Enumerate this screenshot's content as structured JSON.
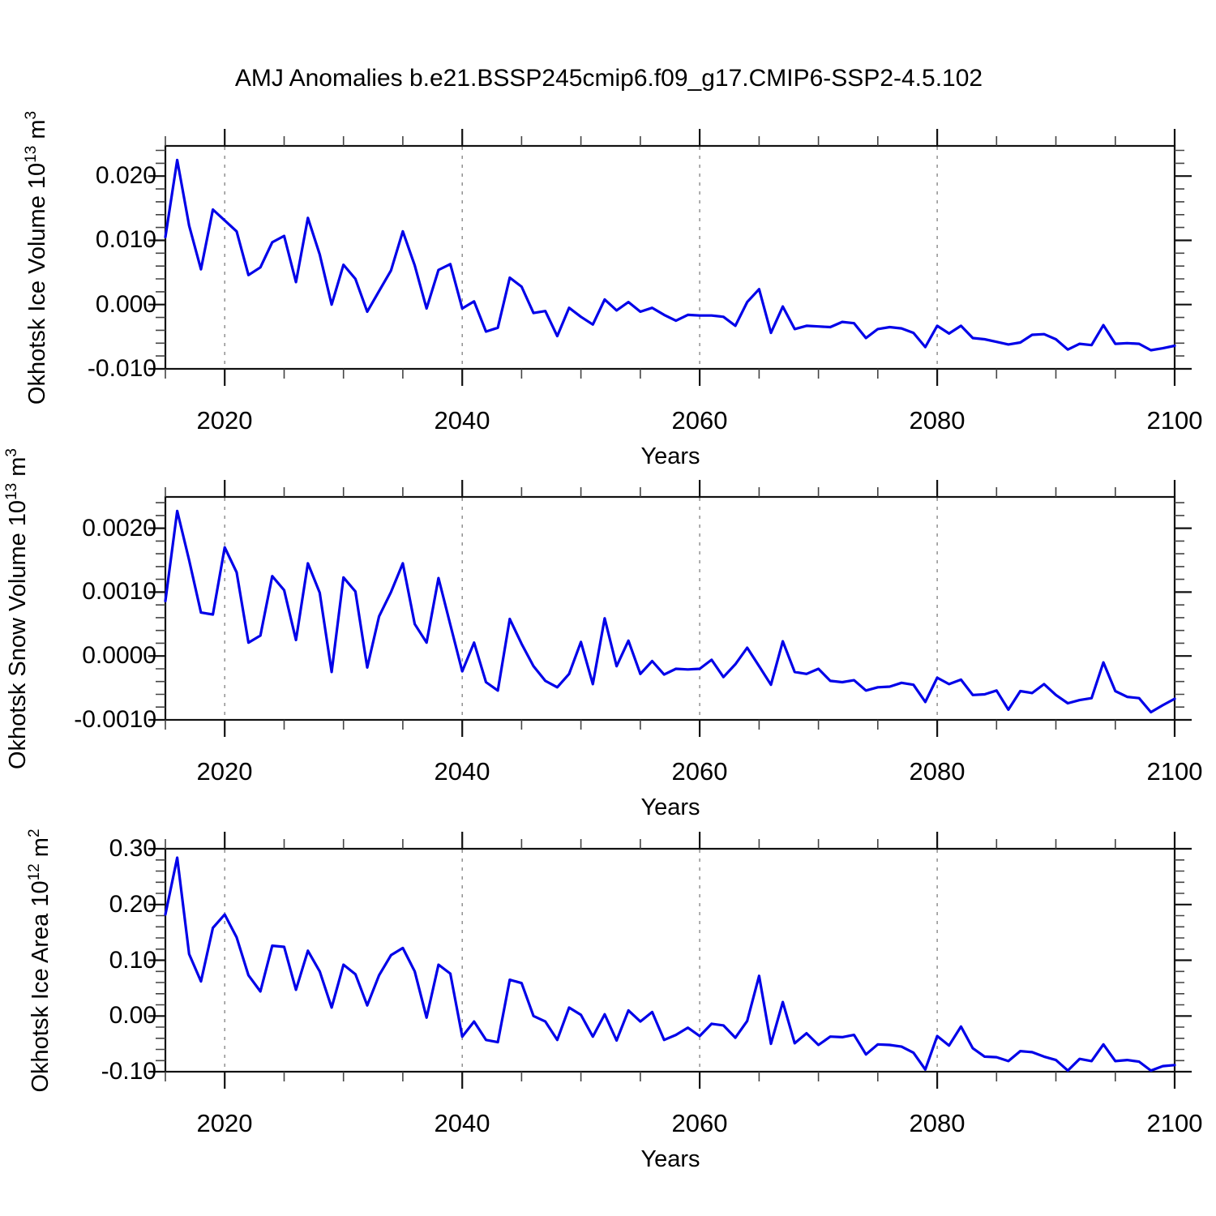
{
  "title": "AMJ Anomalies b.e21.BSSP245cmip6.f09_g17.CMIP6-SSP2-4.5.102",
  "colors": {
    "line": "#0000e8",
    "frame": "#111111",
    "minor_tick": "#444444",
    "grid": "#888888",
    "background": "#ffffff",
    "text": "#000000"
  },
  "chart_data": [
    {
      "type": "line",
      "name": "okhotsk-ice-volume",
      "ylabel": {
        "text": "Okhotsk Ice Volume 10",
        "exp": "13",
        "unit": " m",
        "unit_exp": "3"
      },
      "xlabel": "Years",
      "ylim": [
        -0.01,
        0.0247
      ],
      "yticks": {
        "values": [
          -0.01,
          0.0,
          0.01,
          0.02
        ],
        "labels": [
          "-0.010",
          "0.000",
          "0.010",
          "0.020"
        ]
      },
      "yminor_step": 0.002,
      "xlim": [
        2015,
        2100
      ],
      "xticks": {
        "values": [
          2020,
          2040,
          2060,
          2080,
          2100
        ],
        "labels": [
          "2020",
          "2040",
          "2060",
          "2080",
          "2100"
        ]
      },
      "xminor_step": 5,
      "gridlines_x": [
        2020,
        2040,
        2060,
        2080
      ],
      "grid": "vertical-dashed",
      "legend": "none",
      "years": [
        2015,
        2016,
        2017,
        2018,
        2019,
        2020,
        2021,
        2022,
        2023,
        2024,
        2025,
        2026,
        2027,
        2028,
        2029,
        2030,
        2031,
        2032,
        2033,
        2034,
        2035,
        2036,
        2037,
        2038,
        2039,
        2040,
        2041,
        2042,
        2043,
        2044,
        2045,
        2046,
        2047,
        2048,
        2049,
        2050,
        2051,
        2052,
        2053,
        2054,
        2055,
        2056,
        2057,
        2058,
        2059,
        2060,
        2061,
        2062,
        2063,
        2064,
        2065,
        2066,
        2067,
        2068,
        2069,
        2070,
        2071,
        2072,
        2073,
        2074,
        2075,
        2076,
        2077,
        2078,
        2079,
        2080,
        2081,
        2082,
        2083,
        2084,
        2085,
        2086,
        2087,
        2088,
        2089,
        2090,
        2091,
        2092,
        2093,
        2094,
        2095,
        2096,
        2097,
        2098,
        2099,
        2100
      ],
      "values": [
        0.0105,
        0.0225,
        0.0123,
        0.0055,
        0.0148,
        0.0131,
        0.0114,
        0.0046,
        0.0058,
        0.0097,
        0.0107,
        0.0035,
        0.0135,
        0.0078,
        0.0,
        0.0062,
        0.004,
        -0.0011,
        0.0021,
        0.0053,
        0.0114,
        0.0061,
        -0.0006,
        0.0054,
        0.0063,
        -0.0006,
        0.0005,
        -0.0042,
        -0.0036,
        0.0042,
        0.0028,
        -0.0013,
        -0.001,
        -0.0049,
        -0.0005,
        -0.0019,
        -0.0031,
        0.0008,
        -0.0009,
        0.0004,
        -0.0011,
        -0.0005,
        -0.0016,
        -0.0025,
        -0.0016,
        -0.0017,
        -0.0017,
        -0.0019,
        -0.0033,
        0.0004,
        0.0024,
        -0.0044,
        -0.0003,
        -0.0038,
        -0.0033,
        -0.0034,
        -0.0035,
        -0.0027,
        -0.0029,
        -0.0052,
        -0.0038,
        -0.0035,
        -0.0037,
        -0.0044,
        -0.0066,
        -0.0033,
        -0.0045,
        -0.0033,
        -0.0052,
        -0.0054,
        -0.0058,
        -0.0062,
        -0.0059,
        -0.0047,
        -0.0046,
        -0.0054,
        -0.007,
        -0.0061,
        -0.0063,
        -0.0032,
        -0.0061,
        -0.006,
        -0.0061,
        -0.0071,
        -0.0068,
        -0.0064
      ]
    },
    {
      "type": "line",
      "name": "okhotsk-snow-volume",
      "ylabel": {
        "text": "Okhotsk Snow Volume 10",
        "exp": "13",
        "unit": " m",
        "unit_exp": "3"
      },
      "xlabel": "Years",
      "ylim": [
        -0.001,
        0.00249
      ],
      "yticks": {
        "values": [
          -0.001,
          0.0,
          0.001,
          0.002
        ],
        "labels": [
          "-0.0010",
          "0.0000",
          "0.0010",
          "0.0020"
        ]
      },
      "yminor_step": 0.0002,
      "xlim": [
        2015,
        2100
      ],
      "xticks": {
        "values": [
          2020,
          2040,
          2060,
          2080,
          2100
        ],
        "labels": [
          "2020",
          "2040",
          "2060",
          "2080",
          "2100"
        ]
      },
      "xminor_step": 5,
      "gridlines_x": [
        2020,
        2040,
        2060,
        2080
      ],
      "grid": "vertical-dashed",
      "legend": "none",
      "years": [
        2015,
        2016,
        2017,
        2018,
        2019,
        2020,
        2021,
        2022,
        2023,
        2024,
        2025,
        2026,
        2027,
        2028,
        2029,
        2030,
        2031,
        2032,
        2033,
        2034,
        2035,
        2036,
        2037,
        2038,
        2039,
        2040,
        2041,
        2042,
        2043,
        2044,
        2045,
        2046,
        2047,
        2048,
        2049,
        2050,
        2051,
        2052,
        2053,
        2054,
        2055,
        2056,
        2057,
        2058,
        2059,
        2060,
        2061,
        2062,
        2063,
        2064,
        2065,
        2066,
        2067,
        2068,
        2069,
        2070,
        2071,
        2072,
        2073,
        2074,
        2075,
        2076,
        2077,
        2078,
        2079,
        2080,
        2081,
        2082,
        2083,
        2084,
        2085,
        2086,
        2087,
        2088,
        2089,
        2090,
        2091,
        2092,
        2093,
        2094,
        2095,
        2096,
        2097,
        2098,
        2099,
        2100
      ],
      "values": [
        0.00086,
        0.00227,
        0.0015,
        0.00068,
        0.00065,
        0.0017,
        0.00131,
        0.00021,
        0.00032,
        0.00125,
        0.00103,
        0.00025,
        0.00145,
        0.00099,
        -0.00025,
        0.00123,
        0.00101,
        -0.00018,
        0.00062,
        0.001,
        0.00145,
        0.0005,
        0.00021,
        0.00122,
        0.00049,
        -0.00024,
        0.00021,
        -0.00041,
        -0.00054,
        0.00058,
        0.00019,
        -0.00016,
        -0.00039,
        -0.00049,
        -0.00028,
        0.00022,
        -0.00044,
        0.00059,
        -0.00016,
        0.00024,
        -0.00028,
        -8e-05,
        -0.00029,
        -0.0002,
        -0.00021,
        -0.0002,
        -6e-05,
        -0.00033,
        -0.00013,
        0.00013,
        -0.00016,
        -0.00045,
        0.00023,
        -0.00025,
        -0.00028,
        -0.0002,
        -0.00039,
        -0.00041,
        -0.00038,
        -0.00054,
        -0.00049,
        -0.00048,
        -0.00042,
        -0.00045,
        -0.00072,
        -0.00034,
        -0.00044,
        -0.00037,
        -0.00061,
        -0.0006,
        -0.00054,
        -0.00084,
        -0.00055,
        -0.00058,
        -0.00044,
        -0.00061,
        -0.00074,
        -0.00069,
        -0.00066,
        -0.0001,
        -0.00055,
        -0.00064,
        -0.00066,
        -0.00088,
        -0.00077,
        -0.00067
      ]
    },
    {
      "type": "line",
      "name": "okhotsk-ice-area",
      "ylabel": {
        "text": "Okhotsk Ice Area 10",
        "exp": "12",
        "unit": " m",
        "unit_exp": "2"
      },
      "xlabel": "Years",
      "ylim": [
        -0.1,
        0.3
      ],
      "yticks": {
        "values": [
          -0.1,
          0.0,
          0.1,
          0.2,
          0.3
        ],
        "labels": [
          "-0.10",
          "0.00",
          "0.10",
          "0.20",
          "0.30"
        ]
      },
      "yminor_step": 0.02,
      "xlim": [
        2015,
        2100
      ],
      "xticks": {
        "values": [
          2020,
          2040,
          2060,
          2080,
          2100
        ],
        "labels": [
          "2020",
          "2040",
          "2060",
          "2080",
          "2100"
        ]
      },
      "xminor_step": 5,
      "gridlines_x": [
        2020,
        2040,
        2060,
        2080
      ],
      "grid": "vertical-dashed",
      "legend": "none",
      "years": [
        2015,
        2016,
        2017,
        2018,
        2019,
        2020,
        2021,
        2022,
        2023,
        2024,
        2025,
        2026,
        2027,
        2028,
        2029,
        2030,
        2031,
        2032,
        2033,
        2034,
        2035,
        2036,
        2037,
        2038,
        2039,
        2040,
        2041,
        2042,
        2043,
        2044,
        2045,
        2046,
        2047,
        2048,
        2049,
        2050,
        2051,
        2052,
        2053,
        2054,
        2055,
        2056,
        2057,
        2058,
        2059,
        2060,
        2061,
        2062,
        2063,
        2064,
        2065,
        2066,
        2067,
        2068,
        2069,
        2070,
        2071,
        2072,
        2073,
        2074,
        2075,
        2076,
        2077,
        2078,
        2079,
        2080,
        2081,
        2082,
        2083,
        2084,
        2085,
        2086,
        2087,
        2088,
        2089,
        2090,
        2091,
        2092,
        2093,
        2094,
        2095,
        2096,
        2097,
        2098,
        2099,
        2100
      ],
      "values": [
        0.182,
        0.284,
        0.111,
        0.062,
        0.158,
        0.182,
        0.141,
        0.073,
        0.044,
        0.126,
        0.124,
        0.047,
        0.117,
        0.08,
        0.015,
        0.092,
        0.075,
        0.019,
        0.073,
        0.109,
        0.122,
        0.08,
        -0.003,
        0.092,
        0.076,
        -0.037,
        -0.01,
        -0.043,
        -0.047,
        0.065,
        0.059,
        0.0,
        -0.01,
        -0.043,
        0.015,
        0.002,
        -0.037,
        0.003,
        -0.044,
        0.01,
        -0.01,
        0.007,
        -0.043,
        -0.034,
        -0.021,
        -0.036,
        -0.014,
        -0.017,
        -0.039,
        -0.009,
        0.072,
        -0.05,
        0.025,
        -0.049,
        -0.031,
        -0.052,
        -0.037,
        -0.038,
        -0.034,
        -0.069,
        -0.051,
        -0.052,
        -0.055,
        -0.066,
        -0.096,
        -0.036,
        -0.053,
        -0.019,
        -0.058,
        -0.073,
        -0.074,
        -0.081,
        -0.063,
        -0.065,
        -0.073,
        -0.079,
        -0.098,
        -0.077,
        -0.081,
        -0.051,
        -0.081,
        -0.079,
        -0.082,
        -0.098,
        -0.09,
        -0.088
      ]
    }
  ]
}
